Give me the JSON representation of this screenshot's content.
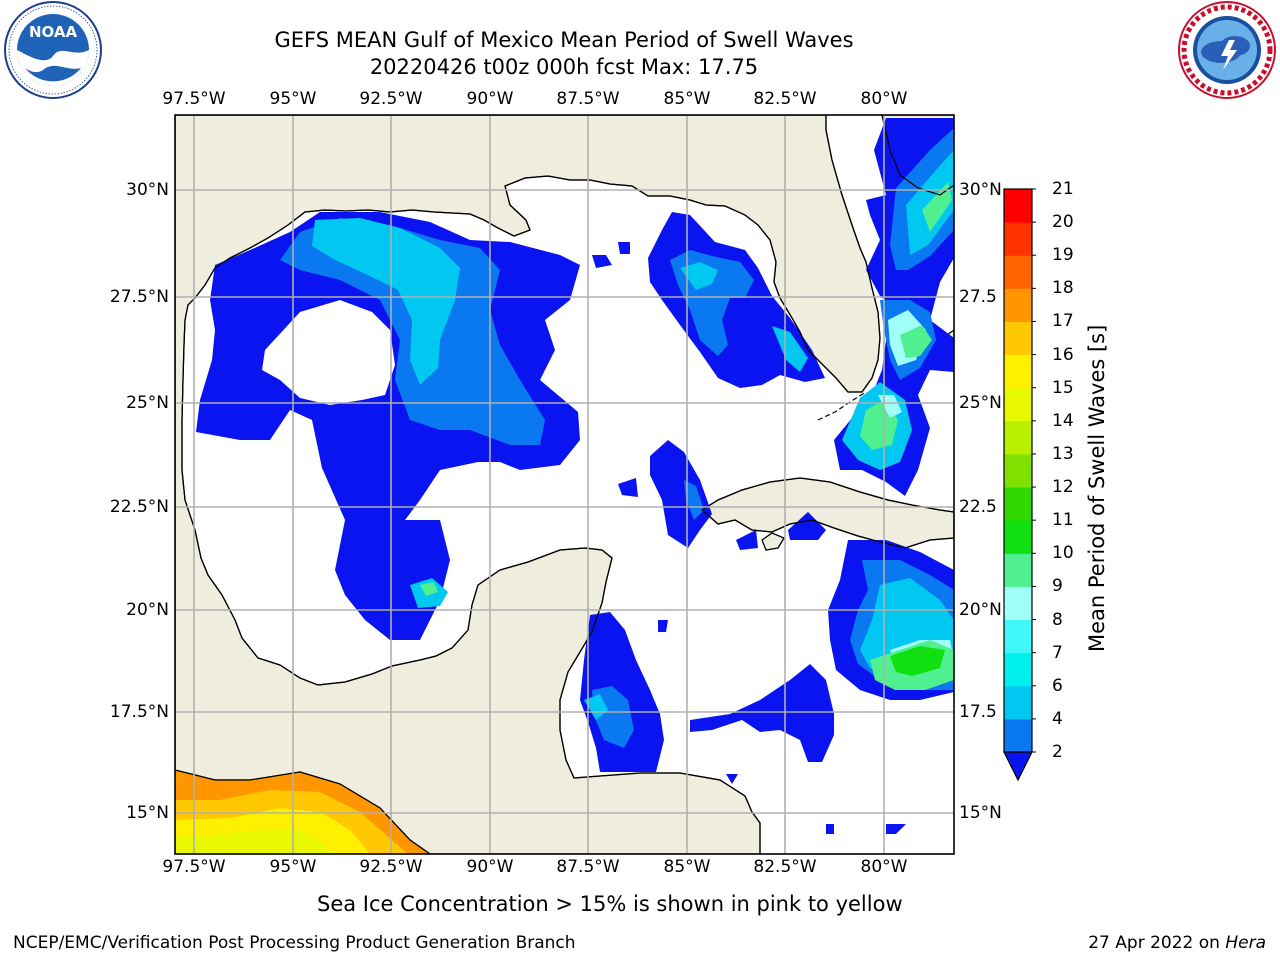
{
  "header": {
    "title_line1": "GEFS MEAN Gulf of Mexico Mean Period of Swell Waves",
    "title_line2": "20220426 t00z 000h fcst   Max: 17.75"
  },
  "logos": {
    "left": {
      "name": "NOAA",
      "ring_text": "NATIONAL OCEANIC AND ATMOSPHERIC ADMINISTRATION · U.S. DEPARTMENT OF COMMERCE"
    },
    "right": {
      "name": "NATIONAL WEATHER SERVICE"
    }
  },
  "map": {
    "lon_labels": [
      "97.5°W",
      "95°W",
      "92.5°W",
      "90°W",
      "87.5°W",
      "85°W",
      "82.5°W",
      "80°W"
    ],
    "lat_labels": [
      "30°N",
      "27.5°N",
      "25°N",
      "22.5°N",
      "20°N",
      "17.5°N",
      "15°N"
    ],
    "right_lat_labels": [
      "30°N",
      "27.5",
      "25°N",
      "22.5",
      "20°N",
      "17.5",
      "15°N"
    ],
    "land_color": "#efedde",
    "ocean_color": "#ffffff",
    "grid_color": "#b0b0b0"
  },
  "colorbar": {
    "label": "Mean Period of Swell Waves [s]",
    "ticks": [
      "2",
      "4",
      "6",
      "7",
      "8",
      "9",
      "10",
      "11",
      "12",
      "13",
      "14",
      "15",
      "16",
      "17",
      "18",
      "19",
      "20",
      "21"
    ],
    "colors": [
      "#0a14f0",
      "#0a78f0",
      "#00c8f0",
      "#00f0f0",
      "#40f8f8",
      "#a0fff8",
      "#50f090",
      "#10e010",
      "#30d800",
      "#80e000",
      "#b8f000",
      "#e8f800",
      "#fff000",
      "#ffc800",
      "#ff9600",
      "#ff6400",
      "#ff3200",
      "#ff0000"
    ],
    "extend": "min"
  },
  "note": "Sea Ice Concentration > 15% is shown in pink to yellow",
  "footer": {
    "left": "NCEP/EMC/Verification Post Processing Product Generation Branch",
    "date": "27 Apr 2022 on ",
    "host": "Hera"
  }
}
